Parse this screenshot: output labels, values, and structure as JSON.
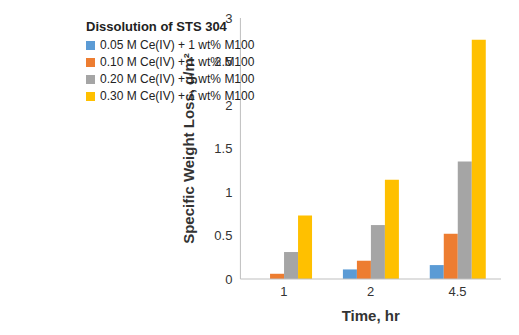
{
  "chart_data": {
    "type": "bar",
    "title": "Dissolution of STS 304",
    "x_label": "Time, hr",
    "y_label": "Specific Weight Loss, g/m²",
    "categories": [
      "1",
      "2",
      "4.5"
    ],
    "series": [
      {
        "name": "0.05 M Ce(IV) + 1 wt% M100",
        "color": "#5b9bd5",
        "values": [
          0,
          0.11,
          0.16
        ]
      },
      {
        "name": "0.10 M Ce(IV) + 1 wt% M100",
        "color": "#ed7d31",
        "values": [
          0.06,
          0.21,
          0.52
        ]
      },
      {
        "name": "0.20 M Ce(IV) + 1 wt% M100",
        "color": "#a5a5a5",
        "values": [
          0.31,
          0.62,
          1.35
        ]
      },
      {
        "name": "0.30 M Ce(IV) + 1 wt% M100",
        "color": "#ffc000",
        "values": [
          0.73,
          1.14,
          2.75
        ]
      }
    ],
    "ylim": [
      0,
      3
    ],
    "yticks": [
      0,
      0.5,
      1,
      1.5,
      2,
      2.5,
      3
    ],
    "grid": false,
    "legend": "top-left"
  }
}
